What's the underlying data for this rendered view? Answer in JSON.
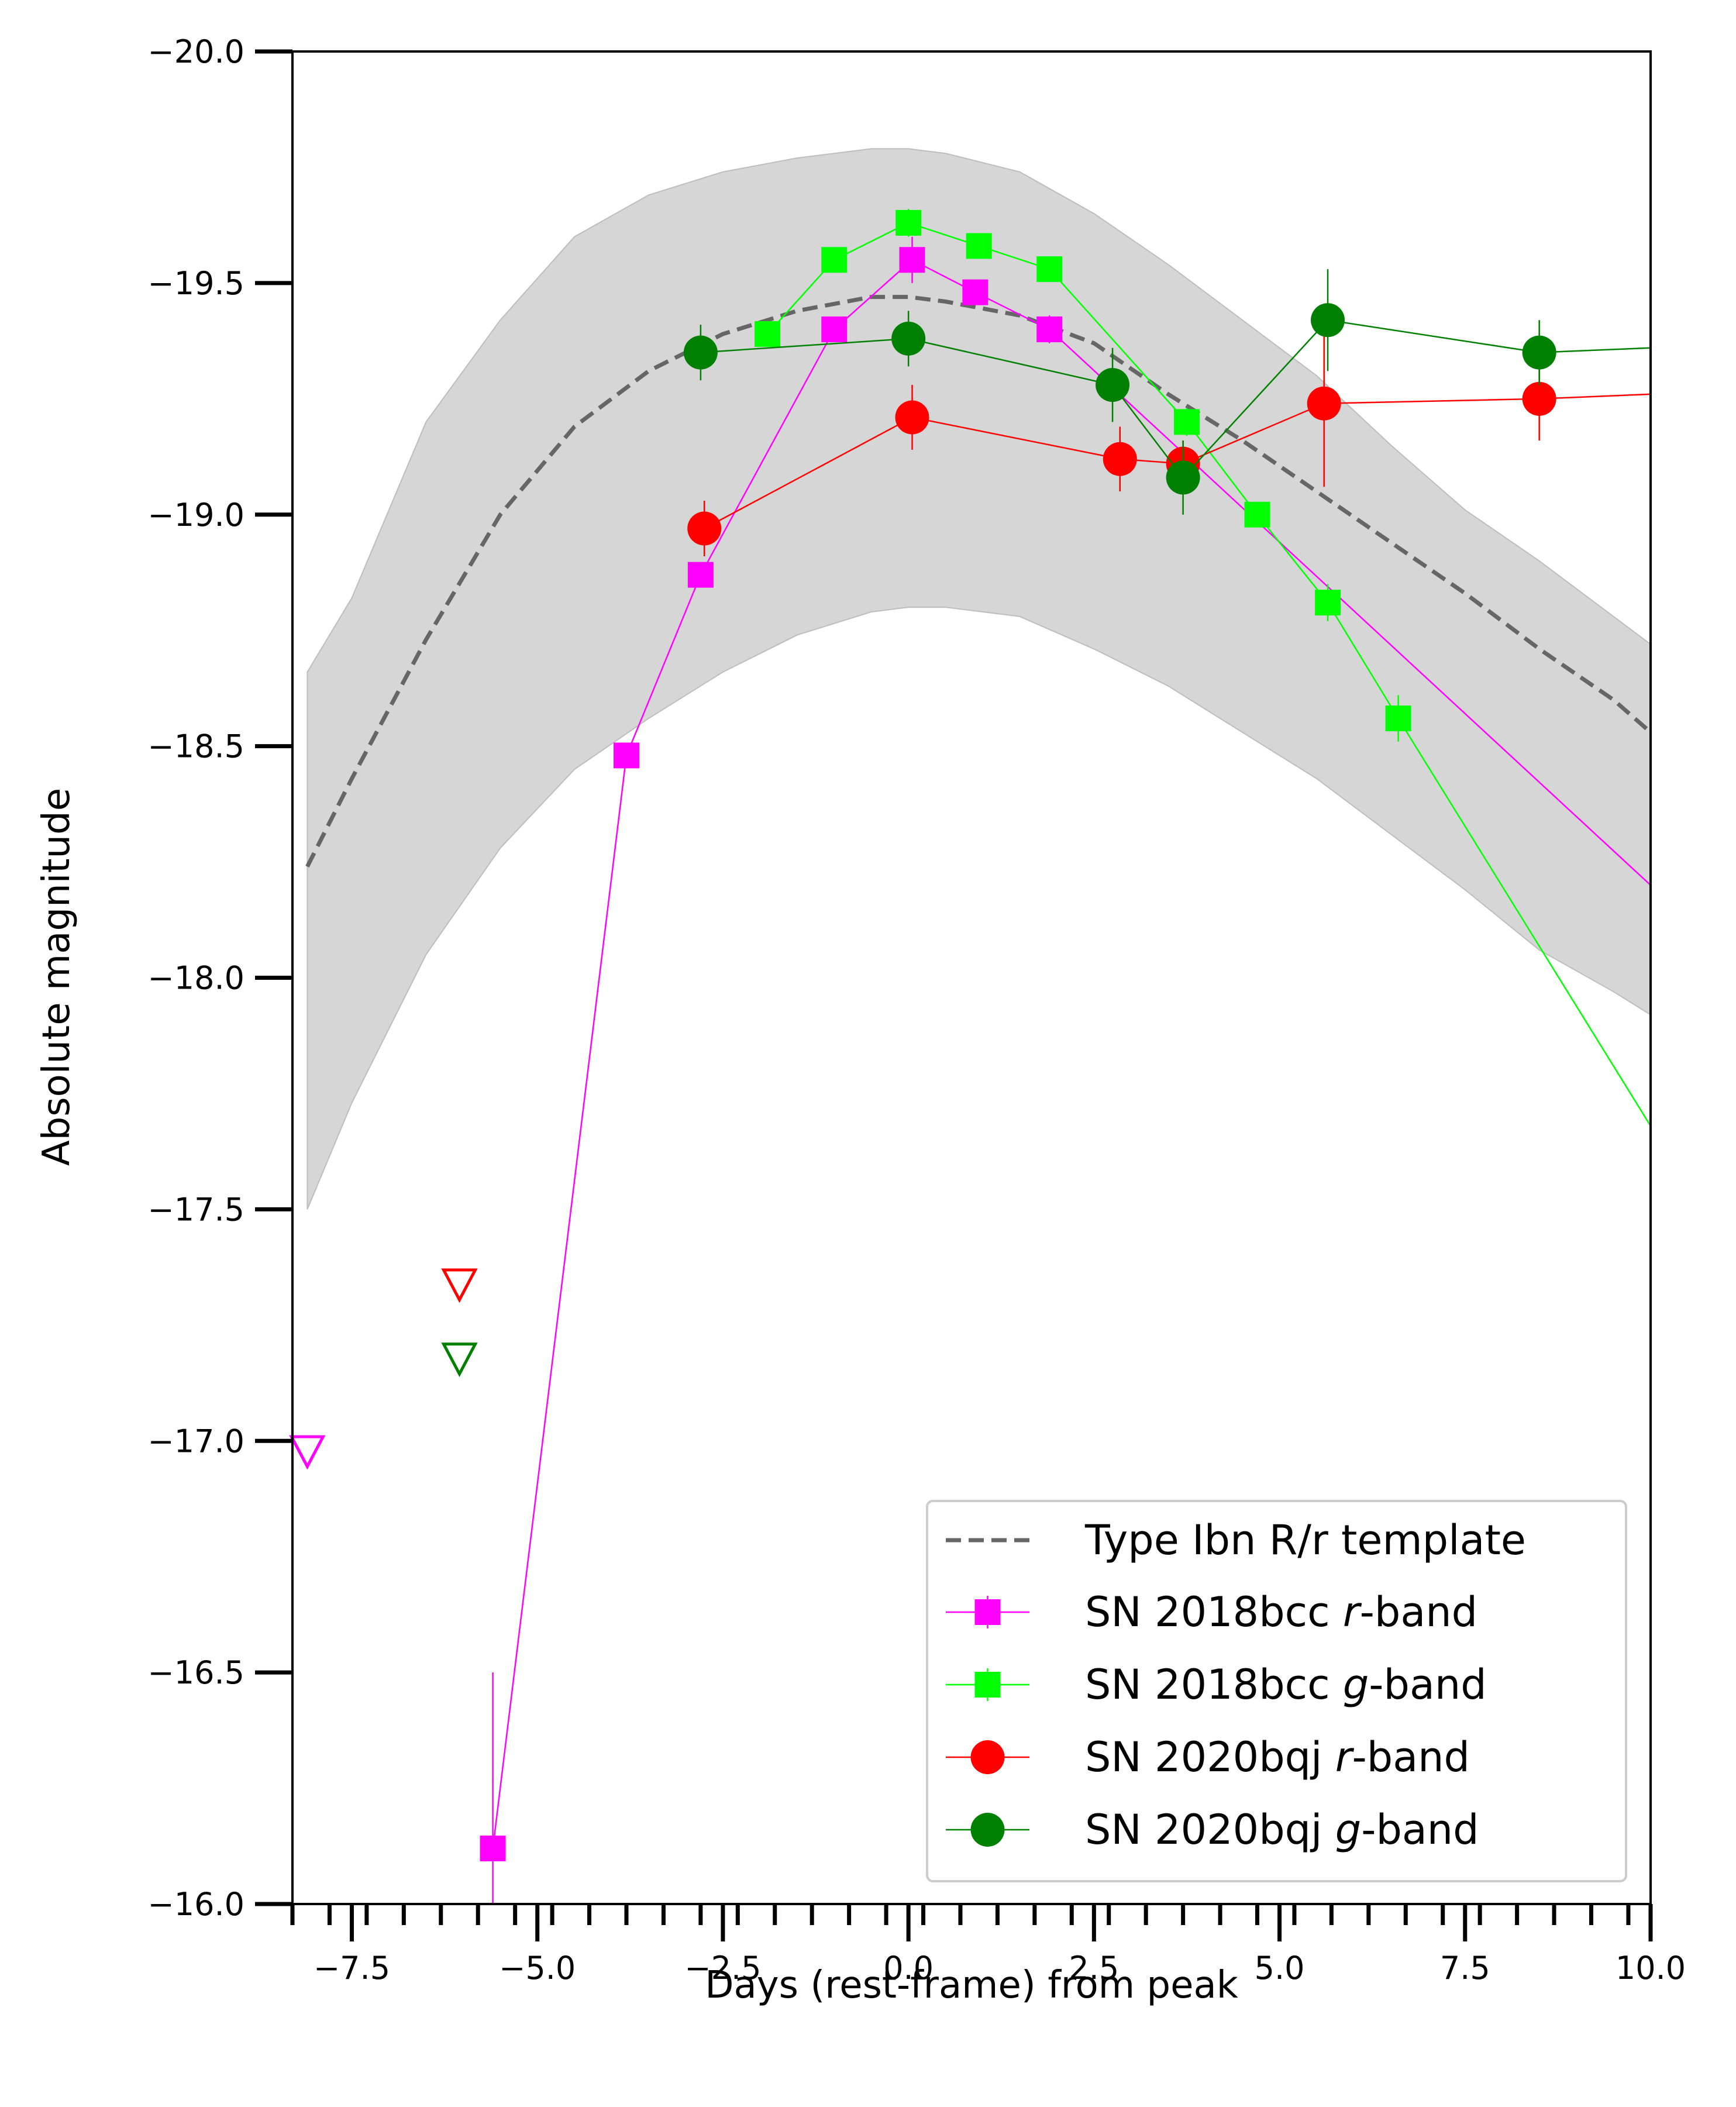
{
  "chart_data": {
    "type": "line",
    "xlabel": "Days (rest-frame) from peak",
    "ylabel": "Absolute magnitude",
    "xlim": [
      -8.3,
      10.0
    ],
    "ylim": [
      -16.0,
      -20.0
    ],
    "xticks": [
      -7.5,
      -5.0,
      -2.5,
      0.0,
      2.5,
      5.0,
      7.5,
      10.0
    ],
    "xtick_labels": [
      "−7.5",
      "−5.0",
      "−2.5",
      "0.0",
      "2.5",
      "5.0",
      "7.5",
      "10.0"
    ],
    "yticks": [
      -20.0,
      -19.5,
      -19.0,
      -18.5,
      -18.0,
      -17.5,
      -17.0,
      -16.5,
      -16.0
    ],
    "ytick_labels": [
      "−20.0",
      "−19.5",
      "−19.0",
      "−18.5",
      "−18.0",
      "−17.5",
      "−17.0",
      "−16.5",
      "−16.0"
    ],
    "legend_position": "lower-right",
    "template": {
      "name": "Type Ibn R/r template",
      "color": "#666666",
      "x": [
        -8.1,
        -7.5,
        -6.5,
        -5.5,
        -4.5,
        -3.5,
        -2.5,
        -1.5,
        -0.5,
        0.0,
        0.5,
        1.5,
        2.5,
        3.5,
        4.5,
        5.5,
        6.5,
        7.5,
        8.5,
        9.5,
        10.0
      ],
      "y": [
        -18.24,
        -18.43,
        -18.73,
        -19.0,
        -19.19,
        -19.31,
        -19.39,
        -19.44,
        -19.47,
        -19.47,
        -19.46,
        -19.43,
        -19.37,
        -19.26,
        -19.16,
        -19.05,
        -18.94,
        -18.83,
        -18.71,
        -18.6,
        -18.53
      ],
      "band_upper": [
        -18.66,
        -18.82,
        -19.2,
        -19.42,
        -19.6,
        -19.69,
        -19.74,
        -19.77,
        -19.79,
        -19.79,
        -19.78,
        -19.74,
        -19.65,
        -19.54,
        -19.42,
        -19.3,
        -19.15,
        -19.01,
        -18.9,
        -18.78,
        -18.72
      ],
      "band_lower": [
        -17.5,
        -17.73,
        -18.05,
        -18.28,
        -18.45,
        -18.56,
        -18.66,
        -18.74,
        -18.79,
        -18.8,
        -18.8,
        -18.78,
        -18.71,
        -18.63,
        -18.53,
        -18.43,
        -18.31,
        -18.19,
        -18.06,
        -17.97,
        -17.92
      ],
      "band_color": "#d6d6d6"
    },
    "series": [
      {
        "name": "SN 2018bcc",
        "band": "r",
        "suffix": "-band",
        "color": "#ff00ff",
        "marker": "square",
        "x": [
          -5.6,
          -3.8,
          -2.8,
          -1.0,
          0.05,
          0.9,
          1.9,
          10.0
        ],
        "y": [
          -16.12,
          -18.48,
          -18.87,
          -19.4,
          -19.55,
          -19.48,
          -19.4,
          -18.2
        ],
        "yerr": [
          0.38,
          0.02,
          0.02,
          0.02,
          0.05,
          0.02,
          0.03,
          0.0
        ],
        "upper_limit": {
          "x": -8.1,
          "y": -16.98
        }
      },
      {
        "name": "SN 2018bcc",
        "band": "g",
        "suffix": "-band",
        "color": "#00ff00",
        "marker": "square",
        "x": [
          -1.9,
          -1.0,
          0.0,
          0.95,
          1.9,
          3.75,
          4.7,
          5.65,
          6.6,
          10.0
        ],
        "y": [
          -19.39,
          -19.55,
          -19.63,
          -19.58,
          -19.53,
          -19.2,
          -19.0,
          -18.81,
          -18.56,
          -17.68
        ],
        "yerr": [
          0.02,
          0.02,
          0.03,
          0.02,
          0.02,
          0.03,
          0.02,
          0.04,
          0.05,
          0.0
        ]
      },
      {
        "name": "SN 2020bqj",
        "band": "r",
        "suffix": "-band",
        "color": "#ff0000",
        "marker": "circle",
        "x": [
          -2.75,
          0.05,
          2.85,
          3.7,
          5.6,
          8.5,
          10.0
        ],
        "y": [
          -18.97,
          -19.21,
          -19.12,
          -19.11,
          -19.24,
          -19.25,
          -19.26
        ],
        "yerr": [
          0.06,
          0.07,
          0.07,
          0.05,
          0.18,
          0.09,
          0.0
        ],
        "upper_limit": {
          "x": -6.05,
          "y": -17.34
        }
      },
      {
        "name": "SN 2020bqj",
        "band": "g",
        "suffix": "-band",
        "color": "#008000",
        "marker": "circle",
        "x": [
          -2.8,
          0.0,
          2.75,
          3.7,
          5.65,
          8.5,
          10.0
        ],
        "y": [
          -19.35,
          -19.38,
          -19.28,
          -19.08,
          -19.42,
          -19.35,
          -19.36
        ],
        "yerr": [
          0.06,
          0.06,
          0.08,
          0.08,
          0.11,
          0.07,
          0.0
        ],
        "upper_limit": {
          "x": -6.05,
          "y": -17.18
        }
      }
    ]
  }
}
